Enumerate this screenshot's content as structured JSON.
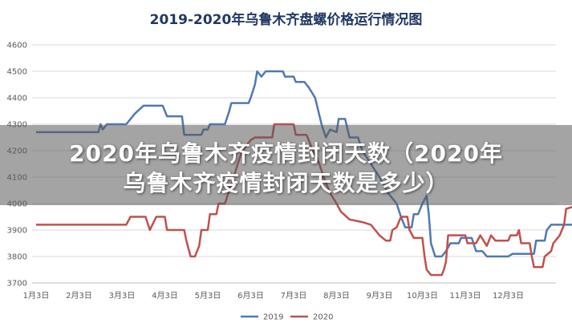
{
  "chart_data": {
    "type": "line",
    "title": "2019-2020年乌鲁木齐盘螺价格运行情况图",
    "xlabel": "",
    "ylabel": "",
    "ylim": [
      3700,
      4600
    ],
    "yticks": [
      3700,
      3800,
      3900,
      4000,
      4100,
      4200,
      4300,
      4400,
      4500,
      4600
    ],
    "xticks": [
      "1月3日",
      "2月3日",
      "3月3日",
      "4月3日",
      "5月3日",
      "6月3日",
      "7月3日",
      "8月3日",
      "9月3日",
      "10月3日",
      "11月3日",
      "12月3日"
    ],
    "grid": true,
    "legend": "bottom",
    "series": [
      {
        "name": "2019",
        "color": "#4e79b5",
        "points": [
          [
            0,
            4270
          ],
          [
            1.45,
            4270
          ],
          [
            1.5,
            4300
          ],
          [
            1.55,
            4280
          ],
          [
            1.65,
            4300
          ],
          [
            2.1,
            4300
          ],
          [
            2.3,
            4340
          ],
          [
            2.5,
            4370
          ],
          [
            2.95,
            4370
          ],
          [
            3.05,
            4330
          ],
          [
            3.4,
            4330
          ],
          [
            3.45,
            4260
          ],
          [
            3.85,
            4260
          ],
          [
            3.9,
            4280
          ],
          [
            4.0,
            4280
          ],
          [
            4.05,
            4300
          ],
          [
            4.4,
            4300
          ],
          [
            4.5,
            4350
          ],
          [
            4.55,
            4380
          ],
          [
            4.95,
            4380
          ],
          [
            5.0,
            4400
          ],
          [
            5.1,
            4450
          ],
          [
            5.15,
            4500
          ],
          [
            5.25,
            4480
          ],
          [
            5.35,
            4500
          ],
          [
            5.75,
            4500
          ],
          [
            5.8,
            4480
          ],
          [
            6.0,
            4480
          ],
          [
            6.05,
            4460
          ],
          [
            6.25,
            4460
          ],
          [
            6.35,
            4440
          ],
          [
            6.5,
            4400
          ],
          [
            6.65,
            4300
          ],
          [
            6.75,
            4250
          ],
          [
            6.85,
            4280
          ],
          [
            7.0,
            4270
          ],
          [
            7.05,
            4320
          ],
          [
            7.2,
            4320
          ],
          [
            7.3,
            4250
          ],
          [
            7.5,
            4250
          ],
          [
            7.6,
            4200
          ],
          [
            7.8,
            4150
          ],
          [
            8.0,
            4100
          ],
          [
            8.2,
            4040
          ],
          [
            8.4,
            4000
          ],
          [
            8.5,
            3950
          ],
          [
            8.6,
            3910
          ],
          [
            8.75,
            3910
          ],
          [
            8.8,
            3960
          ],
          [
            8.9,
            3960
          ],
          [
            9.0,
            4000
          ],
          [
            9.1,
            4030
          ],
          [
            9.15,
            3960
          ],
          [
            9.2,
            3850
          ],
          [
            9.3,
            3800
          ],
          [
            9.45,
            3800
          ],
          [
            9.55,
            3820
          ],
          [
            9.65,
            3850
          ],
          [
            9.85,
            3850
          ],
          [
            9.9,
            3870
          ],
          [
            10.15,
            3870
          ],
          [
            10.25,
            3820
          ],
          [
            10.4,
            3820
          ],
          [
            10.5,
            3800
          ],
          [
            11.0,
            3800
          ],
          [
            11.1,
            3810
          ],
          [
            11.6,
            3810
          ],
          [
            11.65,
            3860
          ],
          [
            11.85,
            3860
          ],
          [
            11.9,
            3900
          ],
          [
            12.0,
            3920
          ],
          [
            12.6,
            3920
          ]
        ]
      },
      {
        "name": "2020",
        "color": "#c0504d",
        "points": [
          [
            0,
            3920
          ],
          [
            2.1,
            3920
          ],
          [
            2.2,
            3950
          ],
          [
            2.55,
            3950
          ],
          [
            2.65,
            3900
          ],
          [
            2.8,
            3950
          ],
          [
            3.0,
            3950
          ],
          [
            3.05,
            3900
          ],
          [
            3.45,
            3900
          ],
          [
            3.5,
            3860
          ],
          [
            3.6,
            3800
          ],
          [
            3.7,
            3800
          ],
          [
            3.8,
            3840
          ],
          [
            3.85,
            3900
          ],
          [
            4.0,
            3900
          ],
          [
            4.05,
            3960
          ],
          [
            4.2,
            3960
          ],
          [
            4.25,
            4000
          ],
          [
            4.4,
            4000
          ],
          [
            4.6,
            4100
          ],
          [
            4.8,
            4200
          ],
          [
            5.0,
            4240
          ],
          [
            5.1,
            4250
          ],
          [
            5.5,
            4250
          ],
          [
            5.55,
            4300
          ],
          [
            6.0,
            4300
          ],
          [
            6.05,
            4260
          ],
          [
            6.3,
            4260
          ],
          [
            6.45,
            4200
          ],
          [
            6.6,
            4150
          ],
          [
            6.7,
            4100
          ],
          [
            6.85,
            4040
          ],
          [
            7.0,
            4000
          ],
          [
            7.1,
            3970
          ],
          [
            7.3,
            3940
          ],
          [
            7.6,
            3930
          ],
          [
            7.8,
            3920
          ],
          [
            8.0,
            3880
          ],
          [
            8.15,
            3860
          ],
          [
            8.25,
            3860
          ],
          [
            8.3,
            3900
          ],
          [
            8.4,
            3910
          ],
          [
            8.5,
            3950
          ],
          [
            8.65,
            3950
          ],
          [
            8.7,
            3900
          ],
          [
            8.8,
            3870
          ],
          [
            9.0,
            3870
          ],
          [
            9.05,
            3800
          ],
          [
            9.1,
            3750
          ],
          [
            9.2,
            3730
          ],
          [
            9.45,
            3730
          ],
          [
            9.5,
            3750
          ],
          [
            9.55,
            3780
          ],
          [
            9.6,
            3880
          ],
          [
            10.0,
            3880
          ],
          [
            10.05,
            3850
          ],
          [
            10.25,
            3850
          ],
          [
            10.35,
            3880
          ],
          [
            10.5,
            3840
          ],
          [
            10.6,
            3880
          ],
          [
            10.7,
            3860
          ],
          [
            11.0,
            3860
          ],
          [
            11.05,
            3880
          ],
          [
            11.2,
            3880
          ],
          [
            11.25,
            3900
          ],
          [
            11.3,
            3850
          ],
          [
            11.5,
            3850
          ],
          [
            11.55,
            3800
          ],
          [
            11.6,
            3760
          ],
          [
            11.8,
            3760
          ],
          [
            11.85,
            3800
          ],
          [
            12.0,
            3820
          ],
          [
            12.05,
            3850
          ],
          [
            12.2,
            3880
          ],
          [
            12.3,
            3920
          ],
          [
            12.35,
            3980
          ],
          [
            12.55,
            3990
          ],
          [
            12.6,
            4060
          ],
          [
            12.65,
            4170
          ],
          [
            13.2,
            4170
          ]
        ]
      }
    ]
  },
  "overlay": {
    "line1": "2020年乌鲁木齐疫情封闭天数（2020年",
    "line2": "乌鲁木齐疫情封闭天数是多少）"
  }
}
